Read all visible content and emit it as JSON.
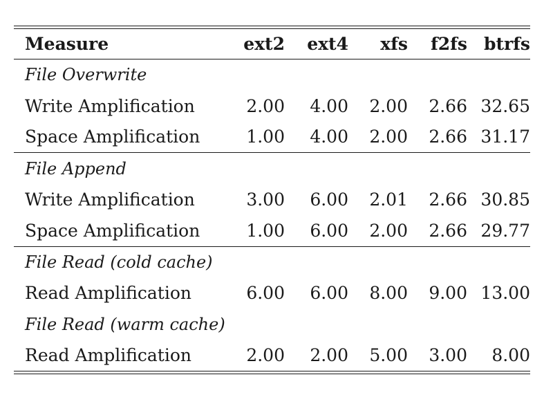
{
  "table": {
    "headers": [
      "Measure",
      "ext2",
      "ext4",
      "xfs",
      "f2fs",
      "btrfs"
    ],
    "sections": [
      {
        "title": "File Overwrite",
        "rows": [
          {
            "measure": "Write Amplification",
            "values": [
              "2.00",
              "4.00",
              "2.00",
              "2.66",
              "32.65"
            ]
          },
          {
            "measure": "Space Amplification",
            "values": [
              "1.00",
              "4.00",
              "2.00",
              "2.66",
              "31.17"
            ]
          }
        ]
      },
      {
        "title": "File Append",
        "rows": [
          {
            "measure": "Write Amplification",
            "values": [
              "3.00",
              "6.00",
              "2.01",
              "2.66",
              "30.85"
            ]
          },
          {
            "measure": "Space Amplification",
            "values": [
              "1.00",
              "6.00",
              "2.00",
              "2.66",
              "29.77"
            ]
          }
        ]
      },
      {
        "title": "File Read (cold cache)",
        "rows": [
          {
            "measure": "Read Amplification",
            "values": [
              "6.00",
              "6.00",
              "8.00",
              "9.00",
              "13.00"
            ]
          }
        ]
      },
      {
        "title": "File Read (warm cache)",
        "rows": [
          {
            "measure": "Read Amplification",
            "values": [
              "2.00",
              "2.00",
              "5.00",
              "3.00",
              "8.00"
            ]
          }
        ]
      }
    ]
  }
}
